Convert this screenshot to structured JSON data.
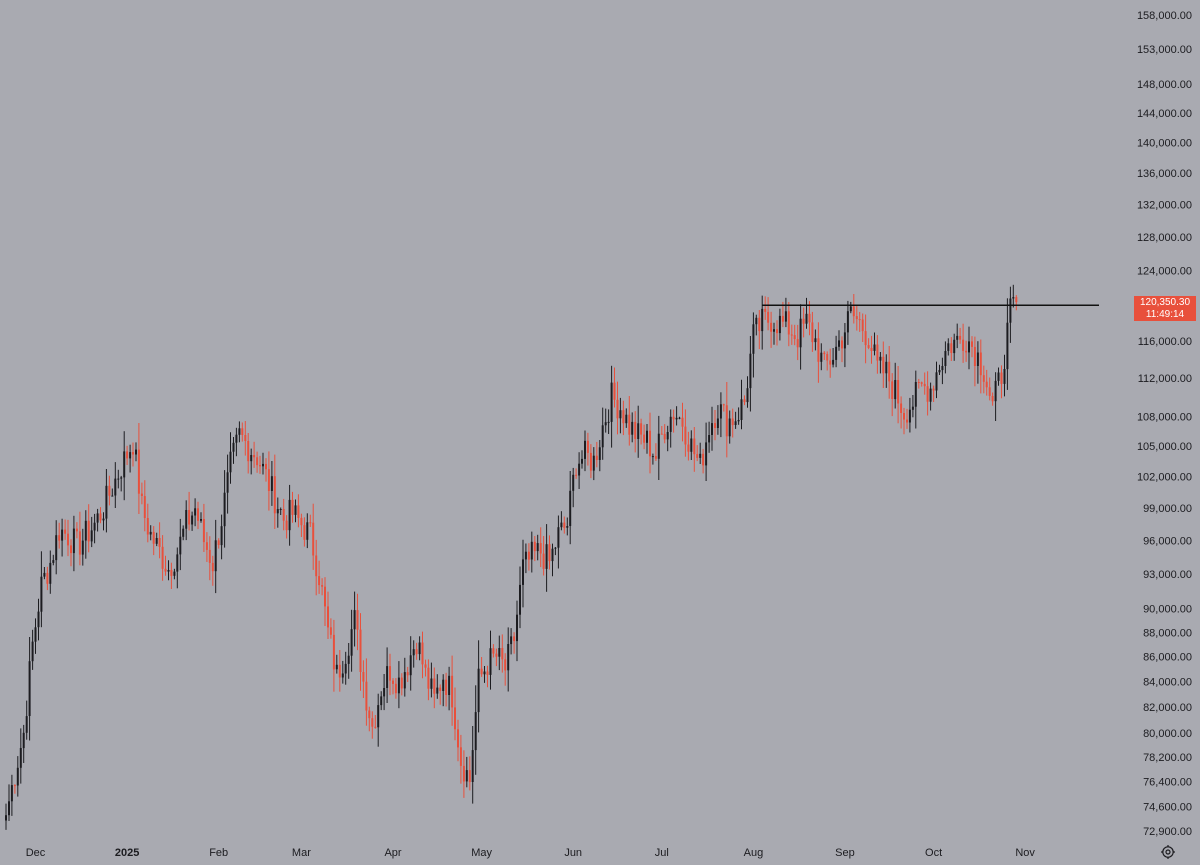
{
  "chart_data": {
    "type": "candlestick",
    "x_axis": {
      "labels": [
        "Dec",
        "2025",
        "Feb",
        "Mar",
        "Apr",
        "May",
        "Jun",
        "Jul",
        "Aug",
        "Sep",
        "Oct",
        "Nov"
      ],
      "bold_labels": [
        "2025"
      ]
    },
    "y_axis": {
      "scale": "log",
      "ylim": [
        71500,
        160000
      ],
      "tick_labels": [
        "158,000.00",
        "153,000.00",
        "148,000.00",
        "144,000.00",
        "140,000.00",
        "136,000.00",
        "132,000.00",
        "128,000.00",
        "124,000.00",
        "116,000.00",
        "112,000.00",
        "108,000.00",
        "105,000.00",
        "102,000.00",
        "99,000.00",
        "96,000.00",
        "93,000.00",
        "90,000.00",
        "88,000.00",
        "86,000.00",
        "84,000.00",
        "82,000.00",
        "80,000.00",
        "78,200.00",
        "76,400.00",
        "74,600.00",
        "72,900.00"
      ]
    },
    "series_path": [
      [
        0,
        74000
      ],
      [
        3,
        77000
      ],
      [
        6,
        80000
      ],
      [
        9,
        87000
      ],
      [
        12,
        92000
      ],
      [
        15,
        94000
      ],
      [
        18,
        97000
      ],
      [
        21,
        96500
      ],
      [
        24,
        95500
      ],
      [
        27,
        96500
      ],
      [
        30,
        97500
      ],
      [
        33,
        99000
      ],
      [
        36,
        101000
      ],
      [
        39,
        103000
      ],
      [
        43,
        105500
      ],
      [
        46,
        99000
      ],
      [
        49,
        96500
      ],
      [
        52,
        95000
      ],
      [
        55,
        93500
      ],
      [
        58,
        95000
      ],
      [
        61,
        97500
      ],
      [
        64,
        99000
      ],
      [
        67,
        96000
      ],
      [
        70,
        94000
      ],
      [
        73,
        98000
      ],
      [
        76,
        103000
      ],
      [
        79,
        106000
      ],
      [
        82,
        105000
      ],
      [
        85,
        104000
      ],
      [
        88,
        102000
      ],
      [
        91,
        100000
      ],
      [
        94,
        98000
      ],
      [
        97,
        98500
      ],
      [
        100,
        97500
      ],
      [
        103,
        96500
      ],
      [
        106,
        93000
      ],
      [
        109,
        88000
      ],
      [
        112,
        84500
      ],
      [
        115,
        86500
      ],
      [
        118,
        89000
      ],
      [
        121,
        84000
      ],
      [
        124,
        80500
      ],
      [
        127,
        83500
      ],
      [
        130,
        85000
      ],
      [
        133,
        84000
      ],
      [
        136,
        85500
      ],
      [
        139,
        87500
      ],
      [
        142,
        84500
      ],
      [
        145,
        82500
      ],
      [
        148,
        84500
      ],
      [
        151,
        83000
      ],
      [
        154,
        78000
      ],
      [
        157,
        76500
      ],
      [
        160,
        84000
      ],
      [
        163,
        85500
      ],
      [
        166,
        86000
      ],
      [
        169,
        85000
      ],
      [
        172,
        87500
      ],
      [
        175,
        93500
      ],
      [
        178,
        94500
      ],
      [
        181,
        95000
      ],
      [
        184,
        94000
      ],
      [
        187,
        96500
      ],
      [
        190,
        97500
      ],
      [
        193,
        103500
      ],
      [
        196,
        104000
      ],
      [
        199,
        103500
      ],
      [
        202,
        107000
      ],
      [
        205,
        110000
      ],
      [
        208,
        109000
      ],
      [
        211,
        107000
      ],
      [
        214,
        106000
      ],
      [
        217,
        105500
      ],
      [
        220,
        104000
      ],
      [
        223,
        107000
      ],
      [
        226,
        108500
      ],
      [
        229,
        107500
      ],
      [
        232,
        105000
      ],
      [
        235,
        103000
      ],
      [
        238,
        107000
      ],
      [
        241,
        109000
      ],
      [
        244,
        107500
      ],
      [
        247,
        108000
      ],
      [
        250,
        109500
      ],
      [
        253,
        116500
      ],
      [
        256,
        118000
      ],
      [
        259,
        118500
      ],
      [
        262,
        118000
      ],
      [
        265,
        117500
      ],
      [
        268,
        116500
      ],
      [
        271,
        118000
      ],
      [
        274,
        116000
      ],
      [
        277,
        113000
      ],
      [
        280,
        114500
      ],
      [
        283,
        116500
      ],
      [
        286,
        119000
      ],
      [
        289,
        118000
      ],
      [
        292,
        116500
      ],
      [
        295,
        113000
      ],
      [
        298,
        112500
      ],
      [
        301,
        110500
      ],
      [
        304,
        108500
      ],
      [
        307,
        109500
      ],
      [
        310,
        111000
      ],
      [
        313,
        111000
      ],
      [
        316,
        113500
      ],
      [
        319,
        115500
      ],
      [
        322,
        116000
      ],
      [
        325,
        116500
      ],
      [
        328,
        115000
      ],
      [
        331,
        113000
      ],
      [
        334,
        109000
      ],
      [
        337,
        112500
      ],
      [
        340,
        119000
      ],
      [
        342,
        120350.3
      ]
    ],
    "last_price": "120,350.30",
    "countdown": "11:49:14",
    "resistance_level": 120000,
    "colors": {
      "background": "#a9aab1",
      "up_candle": "#1c1c20",
      "down_candle": "#e8503c",
      "text": "#1c1c20",
      "price_badge": "#e8503c",
      "line": "#111111"
    }
  },
  "toolbar": {
    "settings_icon": "gear-icon"
  }
}
